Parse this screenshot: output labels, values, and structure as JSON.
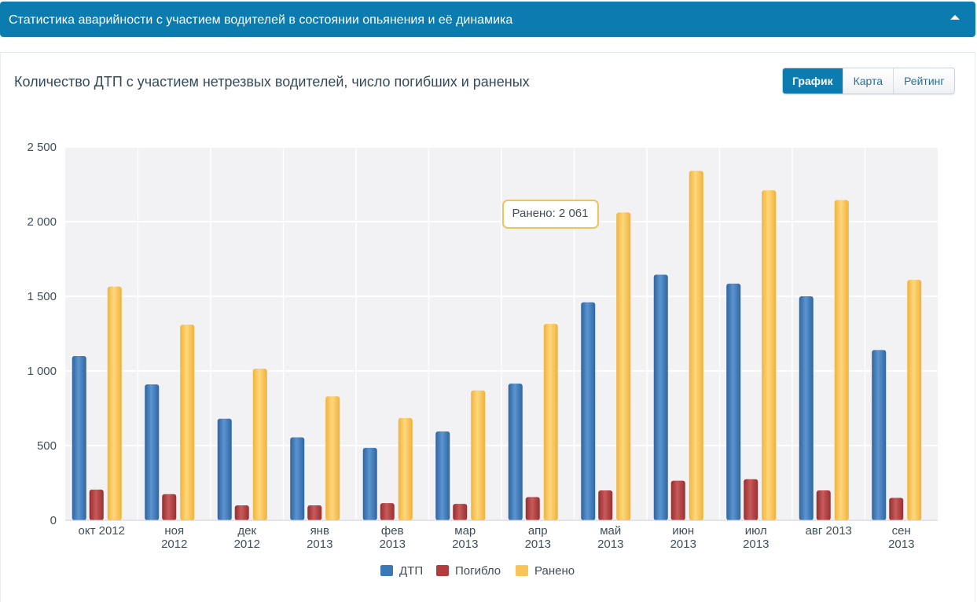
{
  "header": {
    "title": "Статистика аварийности с участием водителей в состоянии опьянения и её динамика"
  },
  "panel": {
    "heading": "Количество ДТП с участием нетрезвых водителей, число погибших и раненых",
    "tabs": [
      {
        "label": "График",
        "active": true
      },
      {
        "label": "Карта",
        "active": false
      },
      {
        "label": "Рейтинг",
        "active": false
      }
    ]
  },
  "colors": {
    "dtp": "#3a78b8",
    "died": "#b23c3c",
    "injured": "#f8c456",
    "header": "#0b7bb0"
  },
  "chart_data": {
    "type": "bar",
    "categories": [
      [
        "окт 2012"
      ],
      [
        "ноя",
        "2012"
      ],
      [
        "дек",
        "2012"
      ],
      [
        "янв",
        "2013"
      ],
      [
        "фев",
        "2013"
      ],
      [
        "мар",
        "2013"
      ],
      [
        "апр",
        "2013"
      ],
      [
        "май",
        "2013"
      ],
      [
        "июн",
        "2013"
      ],
      [
        "июл",
        "2013"
      ],
      [
        "авг 2013"
      ],
      [
        "сен",
        "2013"
      ]
    ],
    "series": [
      {
        "name": "ДТП",
        "values": [
          1100,
          910,
          680,
          555,
          485,
          595,
          915,
          1460,
          1645,
          1585,
          1500,
          1140
        ]
      },
      {
        "name": "Погибло",
        "values": [
          205,
          175,
          100,
          100,
          115,
          110,
          155,
          200,
          265,
          275,
          200,
          150
        ]
      },
      {
        "name": "Ранено",
        "values": [
          1565,
          1310,
          1015,
          830,
          685,
          870,
          1315,
          2061,
          2340,
          2210,
          2145,
          1610
        ]
      }
    ],
    "yticks": [
      "0",
      "500",
      "1 000",
      "1 500",
      "2 000",
      "2 500"
    ],
    "ylim": [
      0,
      2500
    ],
    "legend": "bottom",
    "tooltip": {
      "text": "Ранено: 2 061",
      "series": "Ранено",
      "category_index": 7
    }
  }
}
